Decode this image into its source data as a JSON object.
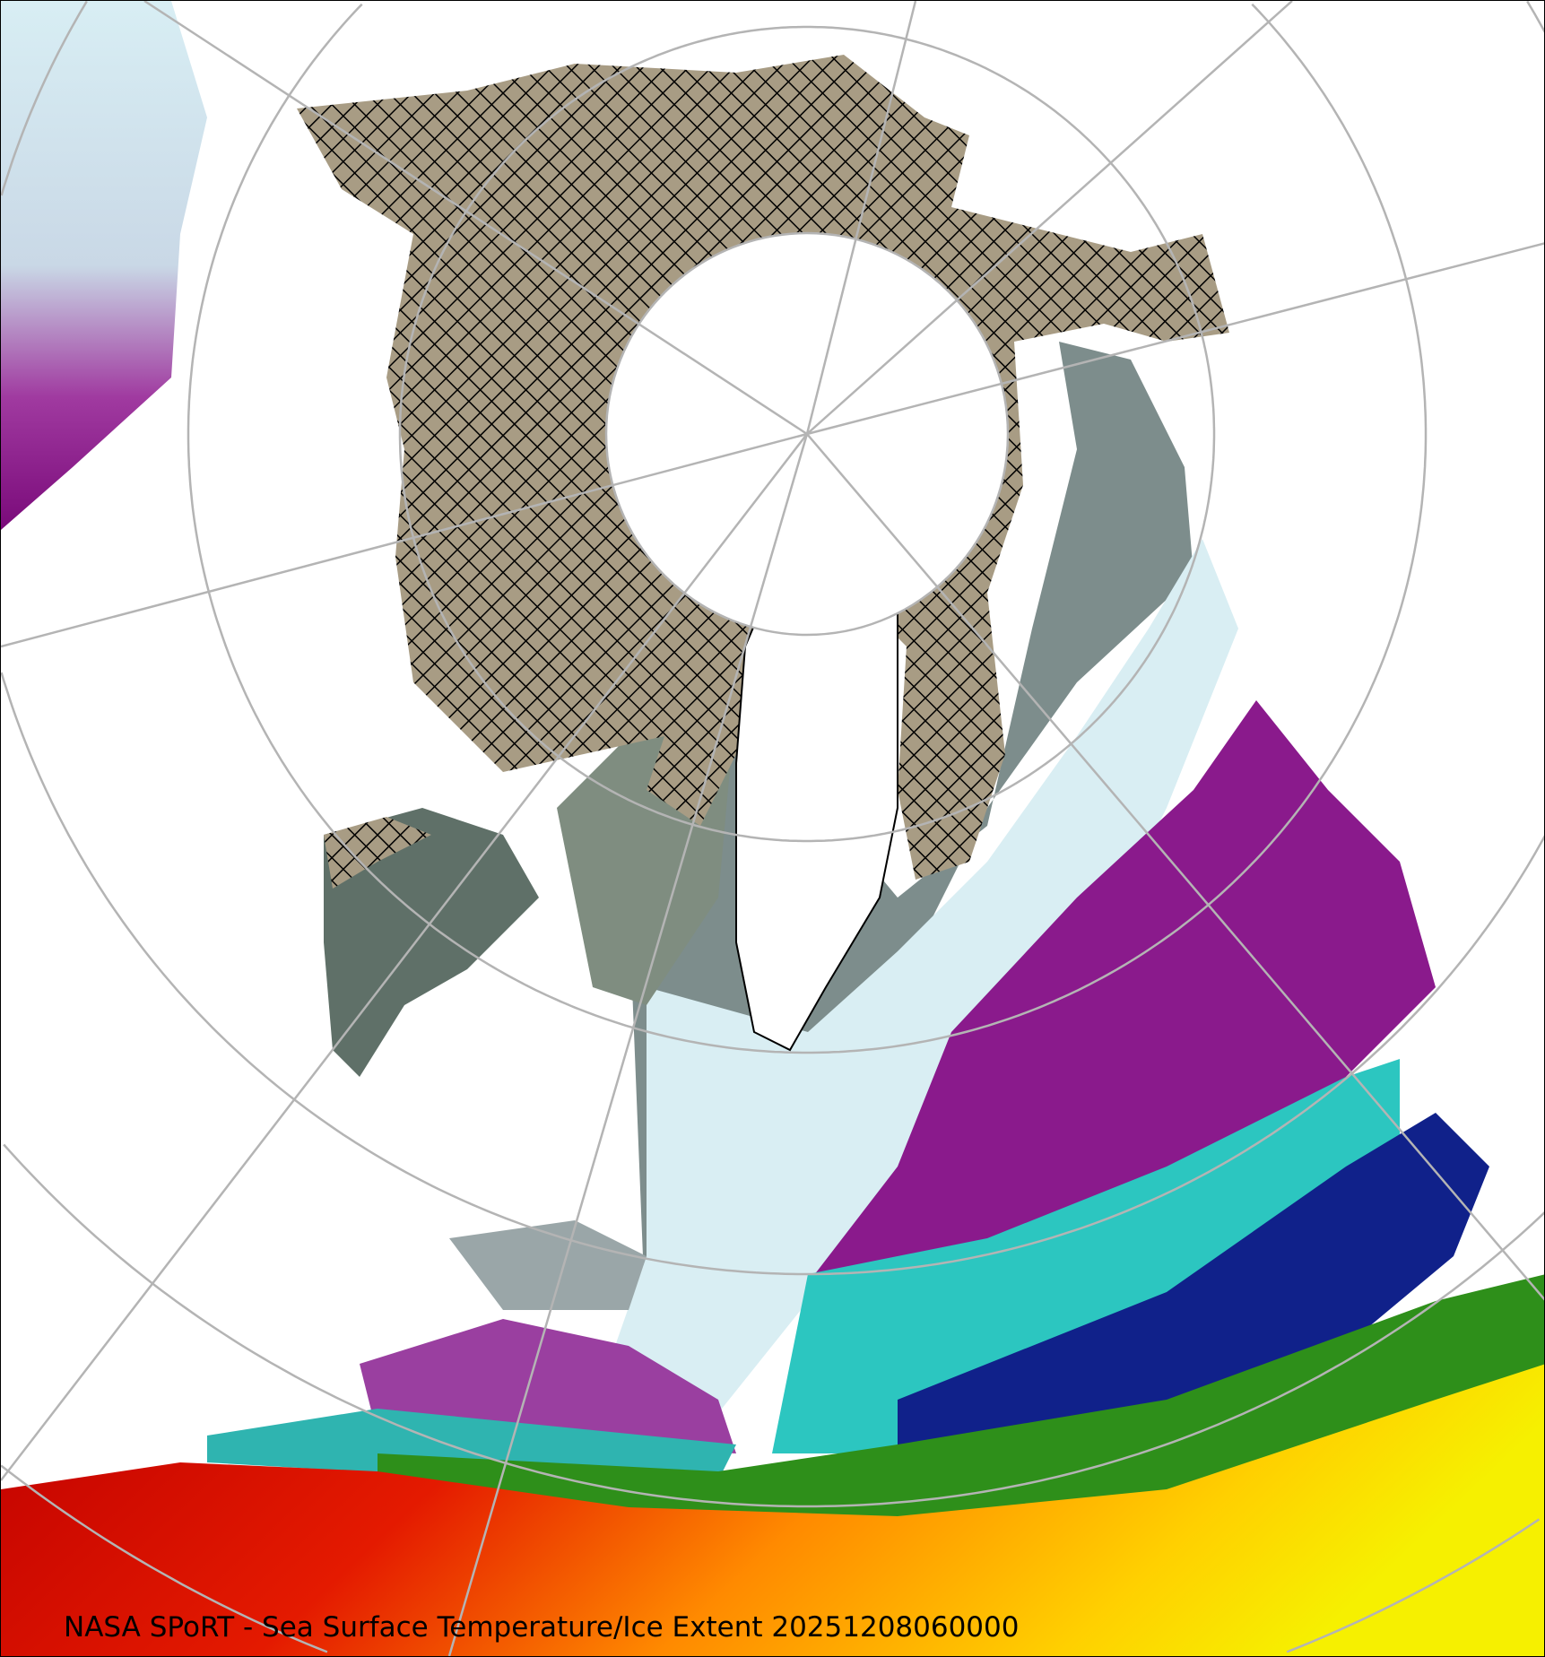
{
  "caption": "NASA SPoRT - Sea Surface Temperature/Ice Extent 20251208060000",
  "legend_colors": {
    "ice": "#a89c84",
    "cold_gray": "#6f7f7a",
    "near_freezing": "#d9f3f6",
    "purple": "#8a1a8c",
    "teal": "#2cc6c0",
    "navy": "#10218a",
    "green": "#2e8f1a",
    "yellow": "#f2ea10",
    "orange": "#ff9a00",
    "red": "#d80000",
    "graticule": "#b4b4b4"
  }
}
